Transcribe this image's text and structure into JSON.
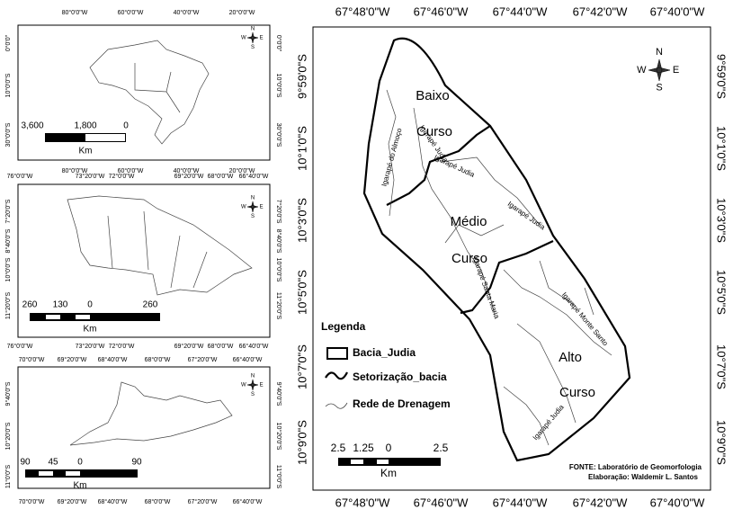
{
  "compass": {
    "n": "N",
    "e": "E",
    "s": "S",
    "w": "W"
  },
  "main_map": {
    "x_labels": [
      "67°48'0\"W",
      "67°46'0\"W",
      "67°44'0\"W",
      "67°42'0\"W",
      "67°40'0\"W"
    ],
    "y_labels": [
      "9°59'0\"S",
      "10°1'0\"S",
      "10°3'0\"S",
      "10°5'0\"S",
      "10°7'0\"S",
      "10°9'0\"S"
    ],
    "sectors": [
      "Baixo",
      "Curso",
      "Médio",
      "Curso",
      "Alto",
      "Curso"
    ],
    "rivers": [
      "Igarapé do Almoço",
      "Igarapé Judia",
      "Igarapé Judia",
      "Igarapé Judia",
      "Igarapé Santa Maria",
      "Igarapé Monte Santo",
      "Igarapé Judia"
    ],
    "legend": {
      "title": "Legenda",
      "items": [
        "Bacia_Judia",
        "Setorização_bacia",
        "Rede de Drenagem"
      ]
    },
    "scale": {
      "labels": [
        "2.5",
        "1.25",
        "0",
        "2.5"
      ],
      "unit": "Km"
    },
    "credits": [
      "FONTE: Laboratório de Geomorfologia",
      "Elaboração: Waldemir L. Santos"
    ]
  },
  "inset_brazil": {
    "x_labels": [
      "80°0'0\"W",
      "60°0'0\"W",
      "40°0'0\"W",
      "20°0'0\"W"
    ],
    "y_labels": [
      "0°0'0\"",
      "10°0'0\"S",
      "30°0'0\"S"
    ],
    "scale": {
      "labels": [
        "3,600",
        "1,800",
        "0"
      ],
      "unit": "Km"
    }
  },
  "inset_acre": {
    "x_labels": [
      "76°0'0\"W",
      "73°20'0\"W",
      "72°0'0\"W",
      "69°20'0\"W",
      "68°0'0\"W",
      "66°40'0\"W"
    ],
    "y_labels": [
      "7°20'0\"S",
      "8°40'0\"S",
      "10°0'0\"S",
      "11°20'0\"S"
    ],
    "scale": {
      "labels": [
        "260",
        "130",
        "0",
        "260"
      ],
      "unit": "Km"
    }
  },
  "inset_municipio": {
    "x_labels": [
      "70°0'0\"W",
      "69°20'0\"W",
      "68°40'0\"W",
      "68°0'0\"W",
      "67°20'0\"W",
      "66°40'0\"W"
    ],
    "y_labels": [
      "9°40'0\"S",
      "10°20'0\"S",
      "11°0'0\"S"
    ],
    "scale": {
      "labels": [
        "90",
        "45",
        "0",
        "90"
      ],
      "unit": "Km"
    }
  }
}
